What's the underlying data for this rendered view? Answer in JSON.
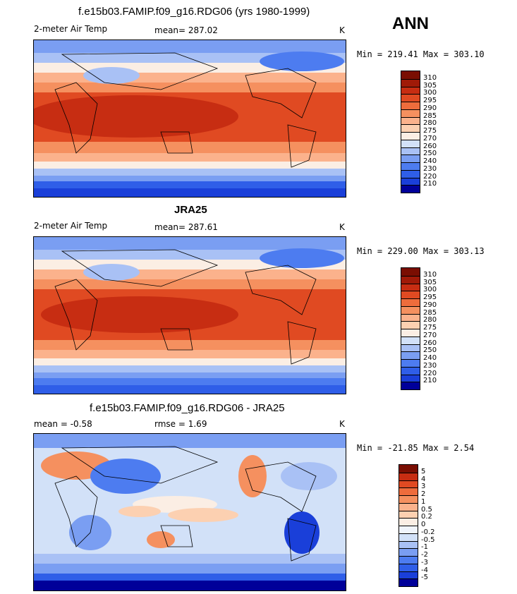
{
  "season": "ANN",
  "colors": {
    "temp": [
      "#000099",
      "#1a3fd9",
      "#2f5ee8",
      "#4d7cf0",
      "#7a9ef2",
      "#a9c1f5",
      "#d2e1f8",
      "#fbeee4",
      "#fcd0b1",
      "#fbb28c",
      "#f5905f",
      "#ee6c3c",
      "#e04a22",
      "#c72d12",
      "#a01a08",
      "#7a0e02"
    ],
    "diff": [
      "#000099",
      "#1a3fd9",
      "#2f5ee8",
      "#4d7cf0",
      "#7a9ef2",
      "#a9c1f5",
      "#d2e1f8",
      "#f0f4fb",
      "#fbeee4",
      "#fcd0b1",
      "#fbb28c",
      "#f5905f",
      "#ee6c3c",
      "#e04a22",
      "#c72d12",
      "#7a0e02"
    ]
  },
  "panels": [
    {
      "title": "f.e15b03.FAMIP.f09_g16.RDG06 (yrs 1980-1999)",
      "variable": "2-meter Air Temp",
      "stat": "mean= 287.02",
      "units": "K",
      "minmax": "Min = 219.41 Max = 303.10",
      "levels": [
        "310",
        "305",
        "300",
        "295",
        "290",
        "285",
        "280",
        "275",
        "270",
        "260",
        "250",
        "240",
        "230",
        "220",
        "210"
      ]
    },
    {
      "title": "JRA25",
      "variable": "2-meter Air Temp",
      "stat": "mean= 287.61",
      "units": "K",
      "minmax": "Min = 229.00 Max = 303.13",
      "levels": [
        "310",
        "305",
        "300",
        "295",
        "290",
        "285",
        "280",
        "275",
        "270",
        "260",
        "250",
        "240",
        "230",
        "220",
        "210"
      ]
    },
    {
      "title": "f.e15b03.FAMIP.f09_g16.RDG06 - JRA25",
      "stat_mean": "mean =   -0.58",
      "stat_rmse": "rmse =    1.69",
      "units": "K",
      "minmax": "Min = -21.85 Max =   2.54",
      "levels": [
        "5",
        "4",
        "3",
        "2",
        "1",
        "0.5",
        "0.2",
        "0",
        "-0.2",
        "-0.5",
        "-1",
        "-2",
        "-3",
        "-4",
        "-5"
      ]
    }
  ]
}
